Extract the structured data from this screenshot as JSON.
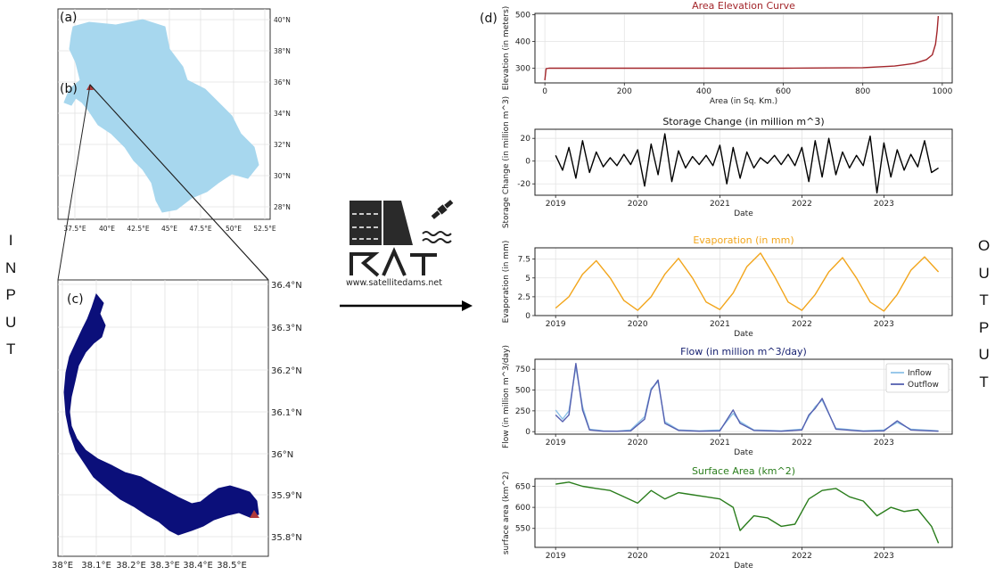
{
  "labels": {
    "input": [
      "I",
      "N",
      "P",
      "U",
      "T"
    ],
    "output": [
      "O",
      "U",
      "T",
      "P",
      "U",
      "T"
    ],
    "logo_url": "www.satellitedams.net",
    "panel_a": "(a)",
    "panel_b": "(b)",
    "panel_c": "(c)",
    "panel_d": "(d)"
  },
  "map_a": {
    "lat_ticks": [
      "40°N",
      "38°N",
      "36°N",
      "34°N",
      "32°N",
      "30°N",
      "28°N"
    ],
    "lon_ticks": [
      "37.5°E",
      "40°E",
      "42.5°E",
      "45°E",
      "47.5°E",
      "50°E",
      "52.5°E"
    ],
    "fill_color": "#a7d7ee"
  },
  "map_c": {
    "lat_ticks": [
      "36.4°N",
      "36.3°N",
      "36.2°N",
      "36.1°N",
      "36°N",
      "35.9°N",
      "35.8°N"
    ],
    "lon_ticks": [
      "38°E",
      "38.1°E",
      "38.2°E",
      "38.3°E",
      "38.4°E",
      "38.5°E"
    ],
    "fill_color": "#0b0f7a",
    "dam_color": "#b03a3a"
  },
  "chart_data": [
    {
      "type": "line",
      "title": "Area Elevation Curve",
      "title_color": "#a3262b",
      "xlabel": "Area (in Sq. Km.)",
      "ylabel": "Elevation (in meters)",
      "xlim": [
        -25,
        1025
      ],
      "ylim": [
        245,
        505
      ],
      "xticks": [
        0,
        200,
        400,
        600,
        800,
        1000
      ],
      "yticks": [
        300,
        400,
        500
      ],
      "series": [
        {
          "color": "#a3262b",
          "x": [
            0,
            3,
            10,
            100,
            300,
            600,
            800,
            880,
            930,
            960,
            975,
            983,
            987,
            990
          ],
          "y": [
            255,
            298,
            300,
            300,
            300,
            300,
            302,
            308,
            318,
            332,
            350,
            390,
            440,
            495
          ]
        }
      ]
    },
    {
      "type": "line",
      "title": "Storage Change (in million m^3)",
      "title_color": "#111111",
      "xlabel": "Date",
      "ylabel": "Storage Change (in million m^3)",
      "xlim": [
        "2018-10-01",
        "2023-11-01"
      ],
      "ylim": [
        -30,
        28
      ],
      "xticks": [
        "2019",
        "2020",
        "2021",
        "2022",
        "2023"
      ],
      "yticks": [
        -20,
        0,
        20
      ],
      "series": [
        {
          "color": "#000000",
          "x": [
            "2019-01",
            "2019-02",
            "2019-03",
            "2019-04",
            "2019-05",
            "2019-06",
            "2019-07",
            "2019-08",
            "2019-09",
            "2019-10",
            "2019-11",
            "2019-12",
            "2020-01",
            "2020-02",
            "2020-03",
            "2020-04",
            "2020-05",
            "2020-06",
            "2020-07",
            "2020-08",
            "2020-09",
            "2020-10",
            "2020-11",
            "2020-12",
            "2021-01",
            "2021-02",
            "2021-03",
            "2021-04",
            "2021-05",
            "2021-06",
            "2021-07",
            "2021-08",
            "2021-09",
            "2021-10",
            "2021-11",
            "2021-12",
            "2022-01",
            "2022-02",
            "2022-03",
            "2022-04",
            "2022-05",
            "2022-06",
            "2022-07",
            "2022-08",
            "2022-09",
            "2022-10",
            "2022-11",
            "2022-12",
            "2023-01",
            "2023-02",
            "2023-03",
            "2023-04",
            "2023-05",
            "2023-06",
            "2023-07",
            "2023-08",
            "2023-09"
          ],
          "y": [
            5,
            -8,
            12,
            -15,
            18,
            -10,
            8,
            -5,
            3,
            -4,
            6,
            -3,
            10,
            -22,
            15,
            -12,
            24,
            -18,
            9,
            -6,
            4,
            -3,
            5,
            -4,
            14,
            -20,
            12,
            -15,
            8,
            -6,
            3,
            -2,
            5,
            -3,
            6,
            -4,
            12,
            -18,
            18,
            -14,
            20,
            -12,
            8,
            -6,
            5,
            -4,
            22,
            -28,
            16,
            -14,
            10,
            -8,
            6,
            -5,
            18,
            -10,
            -6
          ]
        }
      ]
    },
    {
      "type": "line",
      "title": "Evaporation (in mm)",
      "title_color": "#f2a51b",
      "xlabel": "Date",
      "ylabel": "Evaporation (in mm)",
      "xlim": [
        "2018-10-01",
        "2023-11-01"
      ],
      "ylim": [
        0,
        9
      ],
      "xticks": [
        "2019",
        "2020",
        "2021",
        "2022",
        "2023"
      ],
      "yticks": [
        0.0,
        2.5,
        5.0,
        7.5
      ],
      "series": [
        {
          "color": "#f2a51b",
          "x": [
            "2019-01",
            "2019-03",
            "2019-05",
            "2019-07",
            "2019-09",
            "2019-11",
            "2020-01",
            "2020-03",
            "2020-05",
            "2020-07",
            "2020-09",
            "2020-11",
            "2021-01",
            "2021-03",
            "2021-05",
            "2021-07",
            "2021-09",
            "2021-11",
            "2022-01",
            "2022-03",
            "2022-05",
            "2022-07",
            "2022-09",
            "2022-11",
            "2023-01",
            "2023-03",
            "2023-05",
            "2023-07",
            "2023-09"
          ],
          "y": [
            1.0,
            2.5,
            5.5,
            7.3,
            5.0,
            2.0,
            0.7,
            2.5,
            5.5,
            7.6,
            5.0,
            1.8,
            0.8,
            3.0,
            6.5,
            8.3,
            5.2,
            1.8,
            0.7,
            2.8,
            5.8,
            7.7,
            5.0,
            1.8,
            0.6,
            2.8,
            6.0,
            7.8,
            5.8
          ]
        }
      ]
    },
    {
      "type": "line",
      "title": "Flow (in million m^3/day)",
      "title_color": "#141e6e",
      "xlabel": "Date",
      "ylabel": "Flow (in million m^3/day)",
      "xlim": [
        "2018-10-01",
        "2023-11-01"
      ],
      "ylim": [
        -30,
        870
      ],
      "xticks": [
        "2019",
        "2020",
        "2021",
        "2022",
        "2023"
      ],
      "yticks": [
        0,
        250,
        500,
        750
      ],
      "legend": "top-right",
      "series": [
        {
          "name": "Inflow",
          "color": "#8ec2e8",
          "x": [
            "2019-01",
            "2019-02",
            "2019-03",
            "2019-04",
            "2019-05",
            "2019-06",
            "2019-08",
            "2019-10",
            "2019-12",
            "2020-02",
            "2020-03",
            "2020-04",
            "2020-05",
            "2020-07",
            "2020-10",
            "2021-01",
            "2021-03",
            "2021-04",
            "2021-06",
            "2021-10",
            "2022-01",
            "2022-02",
            "2022-03",
            "2022-04",
            "2022-06",
            "2022-10",
            "2023-01",
            "2023-03",
            "2023-05",
            "2023-09"
          ],
          "y": [
            260,
            150,
            250,
            780,
            300,
            30,
            10,
            5,
            20,
            180,
            520,
            600,
            120,
            20,
            10,
            20,
            220,
            120,
            20,
            10,
            30,
            180,
            300,
            380,
            40,
            10,
            20,
            110,
            30,
            10
          ]
        },
        {
          "name": "Outflow",
          "color": "#5560b0",
          "x": [
            "2019-01",
            "2019-02",
            "2019-03",
            "2019-04",
            "2019-05",
            "2019-06",
            "2019-08",
            "2019-10",
            "2019-12",
            "2020-02",
            "2020-03",
            "2020-04",
            "2020-05",
            "2020-07",
            "2020-10",
            "2021-01",
            "2021-03",
            "2021-04",
            "2021-06",
            "2021-10",
            "2022-01",
            "2022-02",
            "2022-03",
            "2022-04",
            "2022-06",
            "2022-10",
            "2023-01",
            "2023-03",
            "2023-05",
            "2023-09"
          ],
          "y": [
            200,
            120,
            200,
            820,
            260,
            20,
            5,
            5,
            10,
            150,
            500,
            620,
            100,
            15,
            5,
            10,
            260,
            100,
            15,
            5,
            20,
            200,
            280,
            400,
            30,
            5,
            10,
            130,
            20,
            5
          ]
        }
      ]
    },
    {
      "type": "line",
      "title": "Surface Area (km^2)",
      "title_color": "#2a7d1c",
      "xlabel": "Date",
      "ylabel": "surface area (km^2)",
      "xlim": [
        "2018-10-01",
        "2023-11-01"
      ],
      "ylim": [
        505,
        668
      ],
      "xticks": [
        "2019",
        "2020",
        "2021",
        "2022",
        "2023"
      ],
      "yticks": [
        550,
        600,
        650
      ],
      "series": [
        {
          "color": "#2a7d1c",
          "x": [
            "2019-01",
            "2019-03",
            "2019-05",
            "2019-07",
            "2019-09",
            "2019-11",
            "2020-01",
            "2020-03",
            "2020-05",
            "2020-07",
            "2020-09",
            "2020-11",
            "2021-01",
            "2021-03",
            "2021-04",
            "2021-06",
            "2021-08",
            "2021-10",
            "2021-12",
            "2022-02",
            "2022-04",
            "2022-06",
            "2022-08",
            "2022-10",
            "2022-12",
            "2023-02",
            "2023-04",
            "2023-06",
            "2023-08",
            "2023-09"
          ],
          "y": [
            655,
            660,
            650,
            645,
            640,
            625,
            610,
            640,
            620,
            635,
            630,
            625,
            620,
            600,
            545,
            580,
            575,
            555,
            560,
            620,
            640,
            645,
            625,
            615,
            580,
            600,
            590,
            595,
            555,
            515
          ]
        }
      ]
    }
  ]
}
